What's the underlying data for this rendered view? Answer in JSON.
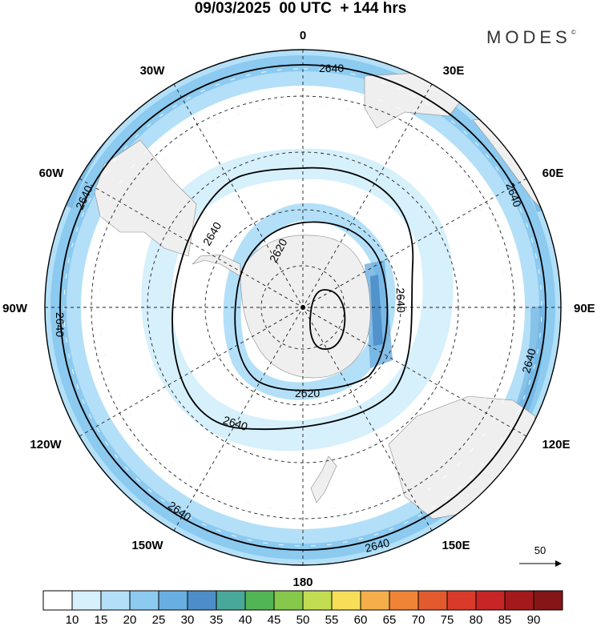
{
  "header": {
    "title": "09/03/2025  00 UTC  + 144 hrs",
    "brand": "MODES",
    "brand_mark": "©"
  },
  "map": {
    "projection": "south-polar-stereographic",
    "lon_labels": {
      "n": "0",
      "s": "180",
      "w": "90W",
      "e": "90E",
      "nw30": "30W",
      "ne30": "30E",
      "w60": "60W",
      "e60": "60E",
      "w120": "120W",
      "e120": "120E",
      "w150": "150W",
      "e150": "150E"
    },
    "contour_labels": {
      "c1": "2640",
      "c2": "2640",
      "c3": "2640",
      "c4": "2640",
      "c5": "2640",
      "c6": "2640",
      "c7": "2640",
      "c8": "2640",
      "c9": "2640",
      "c10": "2620",
      "c11": "2620"
    },
    "reference_vector": "50"
  },
  "colorbar": {
    "ticks": [
      "10",
      "15",
      "20",
      "25",
      "30",
      "35",
      "40",
      "45",
      "50",
      "55",
      "60",
      "65",
      "70",
      "75",
      "80",
      "85",
      "90"
    ],
    "colors": [
      "#ffffff",
      "#d6f0fc",
      "#b3e0f8",
      "#8ccaf0",
      "#69aee0",
      "#4d8ec8",
      "#48a89a",
      "#52b555",
      "#86c84b",
      "#c2dd52",
      "#f6df58",
      "#f4af4a",
      "#ef8436",
      "#e25a2e",
      "#d93a2a",
      "#c72526",
      "#a3191c",
      "#851516"
    ]
  }
}
